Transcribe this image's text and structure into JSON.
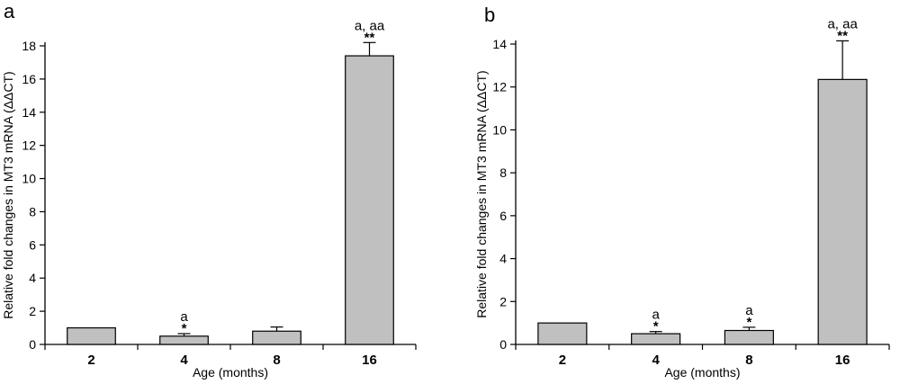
{
  "chart_data": [
    {
      "panel_label": "a",
      "type": "bar",
      "categories": [
        "2",
        "4",
        "8",
        "16"
      ],
      "values": [
        1.0,
        0.5,
        0.8,
        17.4
      ],
      "errors": [
        0,
        0.15,
        0.25,
        0.8
      ],
      "stars": [
        "",
        "*",
        "",
        "**"
      ],
      "annotations": [
        "",
        "a",
        "",
        "a, aa"
      ],
      "xlabel": "Age (months)",
      "ylabel": "Relative fold changes in MT3 mRNA (ΔΔCT)",
      "ylim": [
        0,
        18
      ],
      "yticks": [
        0,
        2,
        4,
        6,
        8,
        10,
        12,
        14,
        16,
        18
      ],
      "bar_color": "#c0c0c0"
    },
    {
      "panel_label": "b",
      "type": "bar",
      "categories": [
        "2",
        "4",
        "8",
        "16"
      ],
      "values": [
        1.0,
        0.5,
        0.65,
        12.35
      ],
      "errors": [
        0,
        0.1,
        0.15,
        1.8
      ],
      "stars": [
        "",
        "*",
        "*",
        "**"
      ],
      "annotations": [
        "",
        "a",
        "a",
        "a, aa"
      ],
      "xlabel": "Age (months)",
      "ylabel": "Relative fold changes in MT3 mRNA (ΔΔCT)",
      "ylim": [
        0,
        14
      ],
      "yticks": [
        0,
        2,
        4,
        6,
        8,
        10,
        12,
        14
      ],
      "bar_color": "#c0c0c0"
    }
  ]
}
